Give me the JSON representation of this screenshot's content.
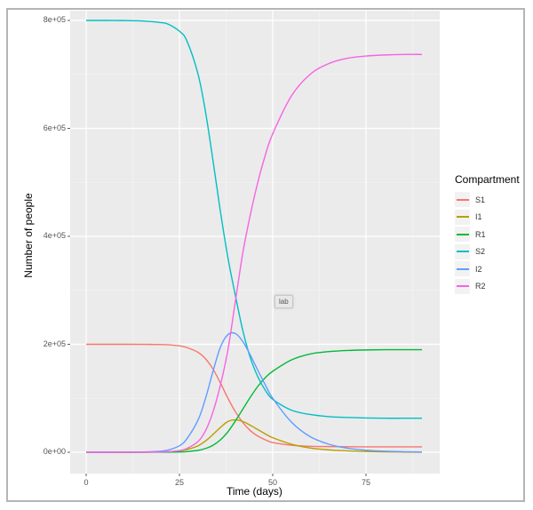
{
  "chart_data": {
    "type": "line",
    "title": "",
    "xlabel": "Time (days)",
    "ylabel": "Number of people",
    "xlim": [
      -4,
      95
    ],
    "ylim": [
      -40000,
      820000
    ],
    "x_ticks": [
      0,
      25,
      50,
      75
    ],
    "y_ticks": [
      0,
      200000,
      400000,
      600000,
      800000
    ],
    "y_tick_labels": [
      "0e+00",
      "2e+05",
      "4e+05",
      "6e+05",
      "8e+05"
    ],
    "x_tick_labels": [
      "0",
      "25",
      "50",
      "75"
    ],
    "grid": true,
    "legend_title": "Compartment",
    "legend_position": "right",
    "x": [
      0,
      5,
      10,
      15,
      20,
      22,
      25,
      27,
      30,
      32,
      34,
      36,
      38,
      40,
      42,
      44,
      46,
      48,
      50,
      55,
      60,
      65,
      70,
      75,
      80,
      85,
      90
    ],
    "series": [
      {
        "name": "S1",
        "color": "#F8766D",
        "values": [
          200000,
          200000,
          200000,
          199900,
          199500,
          199000,
          197000,
          194000,
          185000,
          173000,
          154000,
          128000,
          100000,
          75000,
          55000,
          40000,
          30000,
          23000,
          18000,
          13000,
          11000,
          10500,
          10200,
          10000,
          10000,
          10000,
          10000
        ]
      },
      {
        "name": "I1",
        "color": "#B79F00",
        "values": [
          0,
          0,
          0,
          100,
          500,
          900,
          2500,
          5000,
          12000,
          21000,
          33000,
          46000,
          57000,
          60000,
          57000,
          50000,
          42000,
          34000,
          27000,
          15000,
          8000,
          4500,
          2500,
          1300,
          700,
          400,
          200
        ]
      },
      {
        "name": "R1",
        "color": "#00BA38",
        "values": [
          0,
          0,
          0,
          0,
          100,
          200,
          500,
          1200,
          3500,
          7000,
          13000,
          23000,
          38000,
          58000,
          80000,
          102000,
          122000,
          138000,
          150000,
          171000,
          182000,
          186500,
          188500,
          189500,
          190000,
          190000,
          190000
        ]
      },
      {
        "name": "S2",
        "color": "#00BFC4",
        "values": [
          800000,
          800000,
          799800,
          799000,
          796000,
          793000,
          780000,
          762000,
          700000,
          630000,
          540000,
          445000,
          360000,
          290000,
          225000,
          175000,
          140000,
          115000,
          98000,
          78000,
          70000,
          66000,
          64500,
          63500,
          63000,
          63000,
          63000
        ]
      },
      {
        "name": "I2",
        "color": "#619CFF",
        "values": [
          0,
          0,
          100,
          400,
          2000,
          4000,
          12000,
          25000,
          60000,
          100000,
          150000,
          195000,
          218000,
          220000,
          205000,
          180000,
          152000,
          125000,
          100000,
          56000,
          29000,
          15000,
          7500,
          3800,
          1900,
          1000,
          500
        ]
      },
      {
        "name": "R2",
        "color": "#F564E3",
        "values": [
          0,
          0,
          0,
          100,
          500,
          1000,
          3000,
          7000,
          20000,
          40000,
          75000,
          125000,
          190000,
          280000,
          370000,
          440000,
          500000,
          550000,
          590000,
          660000,
          700000,
          720000,
          730000,
          734000,
          736000,
          737000,
          737000
        ]
      }
    ],
    "annotations": [
      "lab"
    ]
  },
  "legend": {
    "title": "Compartment",
    "items": [
      {
        "label": "S1",
        "color": "#F8766D"
      },
      {
        "label": "I1",
        "color": "#B79F00"
      },
      {
        "label": "R1",
        "color": "#00BA38"
      },
      {
        "label": "S2",
        "color": "#00BFC4"
      },
      {
        "label": "I2",
        "color": "#619CFF"
      },
      {
        "label": "R2",
        "color": "#F564E3"
      }
    ]
  },
  "tooltip": {
    "text": "lab"
  },
  "axes": {
    "xlabel": "Time (days)",
    "ylabel": "Number of people"
  }
}
